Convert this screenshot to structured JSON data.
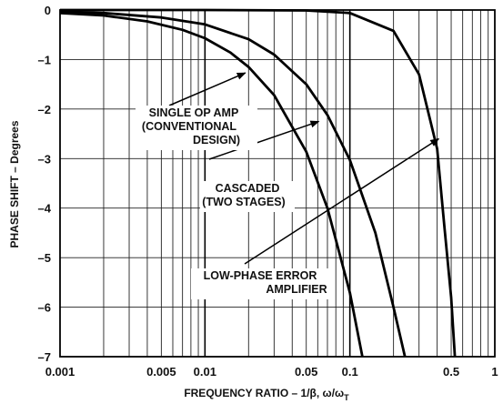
{
  "chart_data": {
    "type": "line",
    "xscale": "log",
    "xlim": [
      0.001,
      1
    ],
    "ylim": [
      -7,
      0
    ],
    "grid": true,
    "xlabel": "FREQUENCY RATIO – 1/β, ω/ω",
    "xlabel_sub": "T",
    "ylabel": "PHASE SHIFT – Degrees",
    "xticks": [
      {
        "value": 0.001,
        "label": "0.001"
      },
      {
        "value": 0.005,
        "label": "0.005"
      },
      {
        "value": 0.01,
        "label": "0.01"
      },
      {
        "value": 0.05,
        "label": "0.05"
      },
      {
        "value": 0.1,
        "label": "0.1"
      },
      {
        "value": 0.5,
        "label": "0.5"
      },
      {
        "value": 1,
        "label": "1"
      }
    ],
    "yticks": [
      {
        "value": 0,
        "label": "0"
      },
      {
        "value": -1,
        "label": "–1"
      },
      {
        "value": -2,
        "label": "–2"
      },
      {
        "value": -3,
        "label": "–3"
      },
      {
        "value": -4,
        "label": "–4"
      },
      {
        "value": -5,
        "label": "–5"
      },
      {
        "value": -6,
        "label": "–6"
      },
      {
        "value": -7,
        "label": "–7"
      }
    ],
    "series": [
      {
        "name": "SINGLE OP AMP (CONVENTIONAL DESIGN)",
        "x": [
          0.001,
          0.002,
          0.004,
          0.007,
          0.01,
          0.015,
          0.02,
          0.03,
          0.05,
          0.07,
          0.1,
          0.122
        ],
        "y": [
          -0.06,
          -0.11,
          -0.23,
          -0.4,
          -0.57,
          -0.86,
          -1.15,
          -1.72,
          -2.86,
          -4.0,
          -5.71,
          -7.0
        ]
      },
      {
        "name": "CASCADED (TWO STAGES)",
        "x": [
          0.001,
          0.002,
          0.005,
          0.01,
          0.02,
          0.03,
          0.05,
          0.07,
          0.1,
          0.15,
          0.2,
          0.24
        ],
        "y": [
          -0.03,
          -0.06,
          -0.15,
          -0.29,
          -0.59,
          -0.9,
          -1.5,
          -2.12,
          -3.03,
          -4.5,
          -6.0,
          -7.0
        ]
      },
      {
        "name": "LOW-PHASE ERROR AMPLIFIER",
        "x": [
          0.001,
          0.01,
          0.05,
          0.1,
          0.2,
          0.3,
          0.4,
          0.45,
          0.5,
          0.53
        ],
        "y": [
          0.0,
          0.0,
          -0.01,
          -0.06,
          -0.42,
          -1.3,
          -2.8,
          -4.4,
          -5.8,
          -7.0
        ]
      }
    ],
    "annotations": [
      {
        "lines": [
          "SINGLE OP AMP",
          "(CONVENTIONAL",
          "DESIGN)"
        ]
      },
      {
        "lines": [
          "CASCADED",
          "(TWO STAGES)"
        ]
      },
      {
        "lines": [
          "LOW-PHASE ERROR",
          "AMPLIFIER"
        ]
      }
    ]
  }
}
